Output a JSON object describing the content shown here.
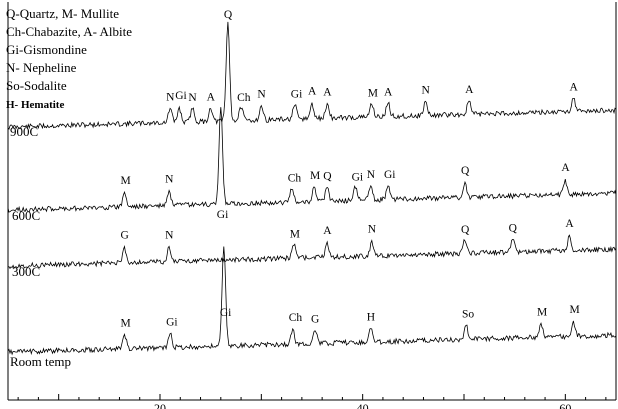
{
  "chart_data": {
    "type": "line",
    "xlabel": "",
    "ylabel": "",
    "xlim": [
      5,
      65
    ],
    "x_ticks": [
      20,
      40,
      60
    ],
    "legend_lines": [
      "Q-Quartz, M- Mullite",
      "Ch-Chabazite, A- Albite",
      "Gi-Gismondine",
      "N- Nepheline",
      "So-Sodalite",
      "H- Hematite"
    ],
    "series": [
      {
        "name": "900C",
        "peaks": [
          {
            "label": "N",
            "x": 21.0
          },
          {
            "label": "Gi",
            "x": 21.9
          },
          {
            "label": "N",
            "x": 23.2
          },
          {
            "label": "A",
            "x": 25.0
          },
          {
            "label": "Q",
            "x": 26.7
          },
          {
            "label": "Ch",
            "x": 28.0
          },
          {
            "label": "N",
            "x": 30.0
          },
          {
            "label": "Gi",
            "x": 33.3
          },
          {
            "label": "A",
            "x": 35.0
          },
          {
            "label": "A",
            "x": 36.5
          },
          {
            "label": "M",
            "x": 40.9
          },
          {
            "label": "A",
            "x": 42.5
          },
          {
            "label": "N",
            "x": 46.2
          },
          {
            "label": "A",
            "x": 50.5
          },
          {
            "label": "A",
            "x": 60.8
          }
        ]
      },
      {
        "name": "600C",
        "peaks": [
          {
            "label": "M",
            "x": 16.5
          },
          {
            "label": "N",
            "x": 20.9
          },
          {
            "label": "Gi",
            "x": 26.0
          },
          {
            "label": "Ch",
            "x": 33.0
          },
          {
            "label": "M",
            "x": 35.2
          },
          {
            "label": "Q",
            "x": 36.5
          },
          {
            "label": "Gi",
            "x": 39.3
          },
          {
            "label": "N",
            "x": 40.8
          },
          {
            "label": "Gi",
            "x": 42.5
          },
          {
            "label": "Q",
            "x": 50.1
          },
          {
            "label": "A",
            "x": 60.0
          }
        ]
      },
      {
        "name": "300C",
        "peaks": [
          {
            "label": "G",
            "x": 16.5
          },
          {
            "label": "N",
            "x": 20.9
          },
          {
            "label": "M",
            "x": 33.2
          },
          {
            "label": "A",
            "x": 36.5
          },
          {
            "label": "N",
            "x": 40.9
          },
          {
            "label": "Q",
            "x": 50.1
          },
          {
            "label": "Q",
            "x": 54.8
          },
          {
            "label": "A",
            "x": 60.4
          }
        ]
      },
      {
        "name": "Room temp",
        "peaks": [
          {
            "label": "M",
            "x": 16.5
          },
          {
            "label": "Gi",
            "x": 21.0
          },
          {
            "label": "Gi",
            "x": 26.3
          },
          {
            "label": "Ch",
            "x": 33.1
          },
          {
            "label": "G",
            "x": 35.3
          },
          {
            "label": "H",
            "x": 40.8
          },
          {
            "label": "So",
            "x": 50.2
          },
          {
            "label": "M",
            "x": 57.6
          },
          {
            "label": "M",
            "x": 60.8
          }
        ]
      }
    ]
  }
}
